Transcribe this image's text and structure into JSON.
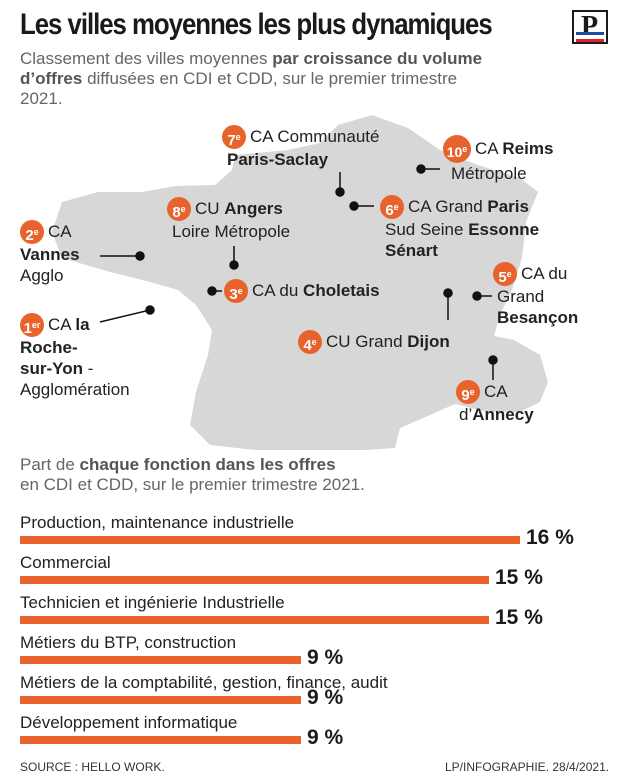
{
  "title": "Les villes moyennes les plus dynamiques",
  "subtitle": {
    "pre": "Classement des villes moyennes ",
    "bold": "par croissance du volume d’offres",
    "post": " diffusées en CDI et CDD, sur le premier trimestre 2021."
  },
  "logo_letter": "P",
  "colors": {
    "accent": "#e8632b",
    "map_fill": "#d7d7d7",
    "text": "#222222"
  },
  "cities": [
    {
      "rank": "1",
      "suffix": "er",
      "lines": [
        [
          "CA ",
          "",
          "la"
        ],
        [
          "",
          "Roche-",
          ""
        ],
        [
          "",
          "sur-Yon",
          " -"
        ],
        [
          "Agglomération",
          "",
          ""
        ]
      ]
    },
    {
      "rank": "2",
      "suffix": "e",
      "lines": [
        [
          "CA",
          "",
          ""
        ],
        [
          "",
          "Vannes",
          ""
        ],
        [
          "Agglo",
          "",
          ""
        ]
      ]
    },
    {
      "rank": "3",
      "suffix": "e",
      "lines": [
        [
          "CA du ",
          "Choletais",
          ""
        ]
      ]
    },
    {
      "rank": "4",
      "suffix": "e",
      "lines": [
        [
          "CU Grand ",
          "Dijon",
          ""
        ]
      ]
    },
    {
      "rank": "5",
      "suffix": "e",
      "lines": [
        [
          "CA du",
          "",
          ""
        ],
        [
          "Grand",
          "",
          ""
        ],
        [
          "",
          "Besançon",
          ""
        ]
      ]
    },
    {
      "rank": "6",
      "suffix": "e",
      "lines": [
        [
          "CA Grand ",
          "Paris",
          ""
        ],
        [
          "Sud Seine ",
          "Essonne",
          ""
        ],
        [
          "",
          "Sénart",
          ""
        ]
      ]
    },
    {
      "rank": "7",
      "suffix": "e",
      "lines": [
        [
          "CA Communauté",
          "",
          ""
        ],
        [
          "",
          "Paris-Saclay",
          ""
        ]
      ]
    },
    {
      "rank": "8",
      "suffix": "e",
      "lines": [
        [
          "CU ",
          "Angers",
          ""
        ],
        [
          "Loire Métropole",
          "",
          ""
        ]
      ]
    },
    {
      "rank": "9",
      "suffix": "e",
      "lines": [
        [
          "CA",
          "",
          ""
        ],
        [
          "d’",
          "Annecy",
          ""
        ]
      ]
    },
    {
      "rank": "10",
      "suffix": "e",
      "lines": [
        [
          "CA ",
          "Reims",
          ""
        ],
        [
          "Métropole",
          "",
          ""
        ]
      ]
    }
  ],
  "section_title": {
    "pre": "Part de ",
    "bold": "chaque fonction dans les offres",
    "post": "en CDI et CDD, sur le premier trimestre 2021."
  },
  "chart_data": {
    "type": "bar",
    "title": "Part de chaque fonction dans les offres en CDI et CDD, sur le premier trimestre 2021.",
    "categories": [
      "Production, maintenance industrielle",
      "Commercial",
      "Technicien et ingénierie Industrielle",
      "Métiers du BTP, construction",
      "Métiers de la comptabilité, gestion, finance, audit",
      "Développement informatique"
    ],
    "values": [
      16,
      15,
      15,
      9,
      9,
      9
    ],
    "value_labels": [
      "16 %",
      "15 %",
      "15 %",
      "9 %",
      "9 %",
      "9 %"
    ],
    "unit": "%",
    "orientation": "horizontal"
  },
  "footer": {
    "source": "SOURCE : HELLO WORK.",
    "credit": "LP/INFOGRAPHIE.  28/4/2021."
  }
}
